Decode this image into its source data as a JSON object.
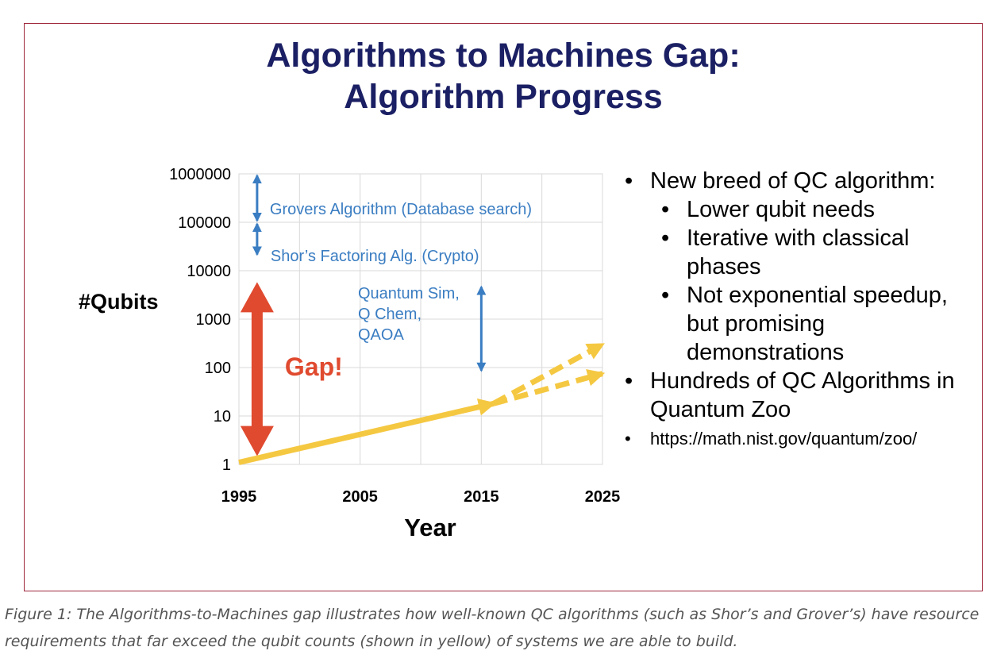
{
  "slide": {
    "title_line1": "Algorithms to Machines Gap:",
    "title_line2": "Algorithm Progress"
  },
  "chart_data": {
    "type": "line",
    "xlabel": "Year",
    "ylabel": "#Qubits",
    "x_ticks": [
      "1995",
      "2005",
      "2015",
      "2025"
    ],
    "y_ticks": [
      "1",
      "10",
      "100",
      "1000",
      "10000",
      "100000",
      "1000000"
    ],
    "xlim": [
      1995,
      2025
    ],
    "ylim": [
      1,
      1000000
    ],
    "y_scale": "log",
    "grid": true,
    "series": [
      {
        "color": "#f5c842",
        "style": "solid",
        "x": [
          1995,
          2016
        ],
        "y": [
          1.1,
          18
        ]
      },
      {
        "color": "#f5c842",
        "style": "dashed",
        "x": [
          2016,
          2025
        ],
        "y": [
          18,
          300
        ]
      },
      {
        "color": "#f5c842",
        "style": "dashed",
        "x": [
          2016,
          2025
        ],
        "y": [
          18,
          75
        ]
      }
    ],
    "annotations": {
      "grover": {
        "label": "Grovers Algorithm (Database search)",
        "x": 1996.5,
        "y_range": [
          100000,
          1000000
        ],
        "color": "#3a7dc2"
      },
      "shor": {
        "label": "Shor’s Factoring Alg. (Crypto)",
        "x": 1996.5,
        "y_range": [
          20000,
          100000
        ],
        "color": "#3a7dc2"
      },
      "qsim": {
        "lines": [
          "Quantum Sim,",
          "Q Chem,",
          "QAOA"
        ],
        "x": 2015,
        "y_range": [
          80,
          5000
        ],
        "color": "#3a7dc2"
      },
      "gap": {
        "label": "Gap!",
        "x": 1996.5,
        "y_range": [
          2,
          5000
        ],
        "color": "#e04a2f"
      }
    }
  },
  "bullets": [
    {
      "level": 1,
      "text": "New breed of QC algorithm:"
    },
    {
      "level": 2,
      "text": "Lower qubit needs"
    },
    {
      "level": 2,
      "text": "Iterative with classical phases"
    },
    {
      "level": 2,
      "text": "Not exponential speedup, but promising demonstrations"
    },
    {
      "level": 1,
      "text": "Hundreds of QC Algorithms in Quantum Zoo"
    },
    {
      "level": 3,
      "text": "https://math.nist.gov/quantum/zoo/"
    }
  ],
  "caption": "Figure 1: The Algorithms-to-Machines gap illustrates how well-known QC algorithms (such as Shor’s and Grover’s) have resource requirements that far exceed the qubit counts (shown in yellow) of systems we are able to build."
}
